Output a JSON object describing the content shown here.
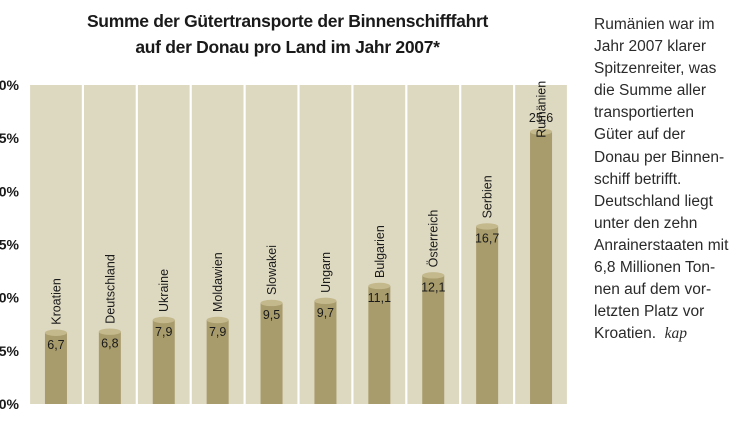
{
  "chart_data": {
    "type": "bar",
    "title_lines": [
      "Summe der Gütertransporte der Binnenschifffahrt",
      "auf der Donau pro Land im Jahr 2007*"
    ],
    "categories": [
      "Kroatien",
      "Deutschland",
      "Ukraine",
      "Moldawien",
      "Slowakei",
      "Ungarn",
      "Bulgarien",
      "Österreich",
      "Serbien",
      "Rumänien"
    ],
    "values": [
      6.7,
      6.8,
      7.9,
      7.9,
      9.5,
      9.7,
      11.1,
      12.1,
      16.7,
      25.6
    ],
    "value_labels": [
      "6,7",
      "6,8",
      "7,9",
      "7,9",
      "9,5",
      "9,7",
      "11,1",
      "12,1",
      "16,7",
      "25,6"
    ],
    "ytick_labels": [
      "0%",
      "5%",
      "0%",
      "5%",
      "0%",
      "5%",
      "0%"
    ],
    "ylim": [
      0,
      30
    ],
    "grid": false,
    "colors": {
      "plot_background": "#ddd8c0",
      "bar": "#a89c6c",
      "bar_cap": "#c4b98c",
      "separator": "#ffffff",
      "text": "#1a1a1a"
    }
  },
  "side_text": {
    "lines": [
      "Rumänien war im",
      "Jahr 2007 klarer",
      "Spitzenreiter, was",
      "die Summe aller",
      "transportierten",
      "Güter auf der",
      "Donau per Binnen-",
      "schiff betrifft.",
      "Deutschland liegt",
      "unter den zehn",
      "Anrainerstaaten mit",
      "6,8 Millionen Ton-",
      "nen auf dem vor-",
      "letzten Platz vor",
      "Kroatien."
    ],
    "signature": "kap"
  }
}
